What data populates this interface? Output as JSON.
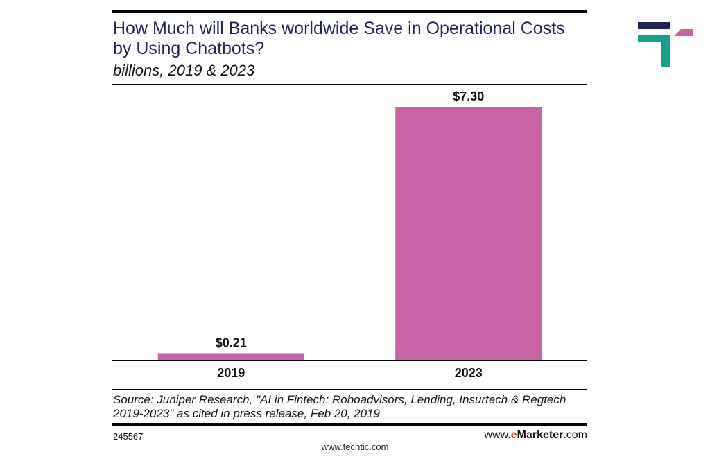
{
  "header": {
    "title": "How Much will Banks worldwide Save in Operational Costs by Using Chatbots?",
    "subtitle": "billions, 2019 & 2023"
  },
  "chart_data": {
    "type": "bar",
    "categories": [
      "2019",
      "2023"
    ],
    "values": [
      0.21,
      7.3
    ],
    "value_labels": [
      "$0.21",
      "$7.30"
    ],
    "ylim": [
      0,
      7.3
    ],
    "bar_color": "#c764a3",
    "grid": false,
    "legend": "none"
  },
  "footer": {
    "source": "Source: Juniper Research, \"AI in Fintech: Roboadvisors, Lending, Insurtech & Regtech 2019-2023\" as cited in press release, Feb 20, 2019",
    "chart_id": "245567",
    "brand_prefix": "www.",
    "brand_e": "e",
    "brand_marketer": "Marketer",
    "brand_suffix": ".com",
    "site_url": "www.techtic.com"
  },
  "colors": {
    "title": "#1f2357",
    "logo_navy": "#1f2357",
    "logo_teal": "#16a08c",
    "logo_pink": "#c764a3",
    "brand_red": "#e0332f"
  }
}
